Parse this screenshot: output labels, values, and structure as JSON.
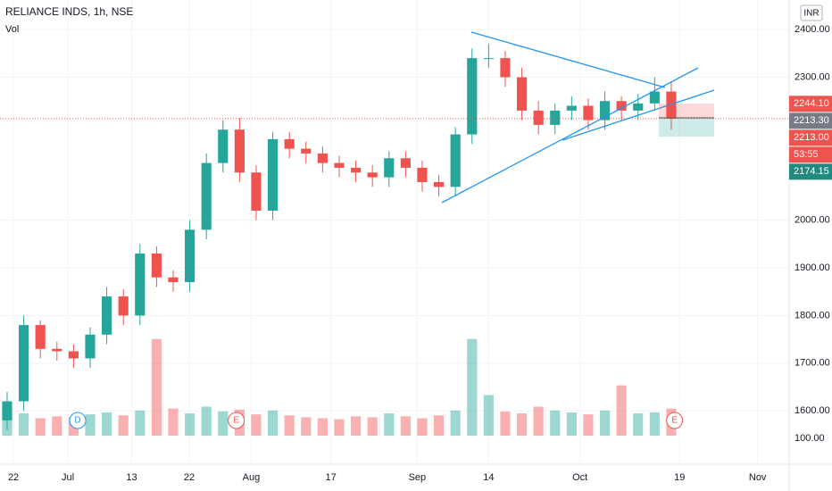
{
  "chart_data": {
    "type": "candlestick",
    "title": "RELIANCE INDS, 1h, NSE",
    "volume_label": "Vol",
    "currency": "INR",
    "x": [
      0,
      1,
      2,
      3,
      4,
      5,
      6,
      7,
      8,
      9,
      10,
      11,
      12,
      13,
      14,
      15,
      16,
      17,
      18,
      19,
      20,
      21,
      22,
      23,
      24,
      25,
      26,
      27,
      28,
      29,
      30,
      31,
      32,
      33,
      34,
      35,
      36,
      37,
      38,
      39,
      40
    ],
    "open": [
      1580,
      1620,
      1780,
      1730,
      1725,
      1710,
      1760,
      1840,
      1800,
      1930,
      1880,
      1870,
      1980,
      2120,
      2190,
      2100,
      2020,
      2170,
      2150,
      2140,
      2120,
      2110,
      2100,
      2090,
      2130,
      2110,
      2080,
      2070,
      2180,
      2340,
      2340,
      2300,
      2230,
      2200,
      2230,
      2240,
      2210,
      2250,
      2230,
      2245,
      2270
    ],
    "high": [
      1640,
      1800,
      1790,
      1745,
      1740,
      1775,
      1860,
      1855,
      1950,
      1945,
      1895,
      2000,
      2140,
      2210,
      2215,
      2115,
      2185,
      2185,
      2165,
      2155,
      2135,
      2125,
      2115,
      2145,
      2145,
      2125,
      2095,
      2195,
      2360,
      2370,
      2355,
      2320,
      2250,
      2245,
      2260,
      2255,
      2270,
      2260,
      2265,
      2300,
      2290
    ],
    "low": [
      1560,
      1600,
      1710,
      1705,
      1690,
      1690,
      1740,
      1780,
      1780,
      1860,
      1850,
      1850,
      1960,
      2100,
      2080,
      2000,
      2000,
      2130,
      2120,
      2100,
      2090,
      2080,
      2070,
      2070,
      2090,
      2060,
      2050,
      2050,
      2160,
      2320,
      2280,
      2210,
      2180,
      2180,
      2210,
      2190,
      2190,
      2210,
      2210,
      2230,
      2190
    ],
    "close": [
      1620,
      1780,
      1730,
      1725,
      1710,
      1760,
      1840,
      1800,
      1930,
      1880,
      1870,
      1980,
      2120,
      2190,
      2100,
      2020,
      2170,
      2150,
      2140,
      2120,
      2110,
      2100,
      2090,
      2130,
      2110,
      2080,
      2070,
      2180,
      2340,
      2340,
      2300,
      2230,
      2200,
      2230,
      2240,
      2210,
      2250,
      2230,
      2245,
      2270,
      2213
    ],
    "volume": [
      260,
      230,
      180,
      200,
      190,
      220,
      240,
      210,
      260,
      1000,
      280,
      230,
      300,
      250,
      270,
      220,
      260,
      210,
      190,
      180,
      170,
      200,
      190,
      230,
      200,
      180,
      210,
      260,
      1000,
      420,
      250,
      230,
      300,
      260,
      240,
      220,
      260,
      520,
      230,
      240,
      280
    ],
    "up_color": "#26a69a",
    "down_color": "#ef5350",
    "xlim": [
      -0.43,
      47.1
    ],
    "xticks": [
      {
        "value": 0.38,
        "label": "22"
      },
      {
        "value": 3.66,
        "label": "Jul"
      },
      {
        "value": 7.5,
        "label": "13"
      },
      {
        "value": 10.97,
        "label": "22"
      },
      {
        "value": 14.7,
        "label": "Aug"
      },
      {
        "value": 19.5,
        "label": "17"
      },
      {
        "value": 24.7,
        "label": "Sep"
      },
      {
        "value": 29.0,
        "label": "14"
      },
      {
        "value": 34.5,
        "label": "Oct"
      },
      {
        "value": 40.5,
        "label": "19"
      },
      {
        "value": 45.2,
        "label": "Nov"
      }
    ],
    "ylim": [
      1488,
      2462
    ],
    "yticks": [
      {
        "value": 2400,
        "label": "2400.00"
      },
      {
        "value": 2300,
        "label": "2300.00"
      },
      {
        "value": 2000,
        "label": "2000.00"
      },
      {
        "value": 1900,
        "label": "1900.00"
      },
      {
        "value": 1800,
        "label": "1800.00"
      },
      {
        "value": 1700,
        "label": "1700.00"
      },
      {
        "value": 1600,
        "label": "1600.00"
      }
    ],
    "vlim": [
      0,
      1200
    ],
    "vticks": [
      {
        "value": 100,
        "label": "100.00"
      }
    ],
    "grid": true,
    "price_labels": [
      {
        "value": 2244.1,
        "label": "2244.10",
        "color": "#ef5350"
      },
      {
        "value": 2213.3,
        "label": "2213.30",
        "color": "#787b86",
        "line": true
      },
      {
        "value": 2213.0,
        "label": "2213.00",
        "color": "#ef5350"
      },
      {
        "value": 2174.15,
        "label": "2174.15",
        "color": "#22897f"
      }
    ],
    "countdown": "53:55",
    "events": [
      {
        "x": 4.25,
        "label": "D",
        "color": "#2196f3"
      },
      {
        "x": 13.8,
        "label": "E",
        "color": "#ef5350"
      },
      {
        "x": 40.2,
        "label": "E",
        "color": "#ef5350"
      }
    ]
  }
}
